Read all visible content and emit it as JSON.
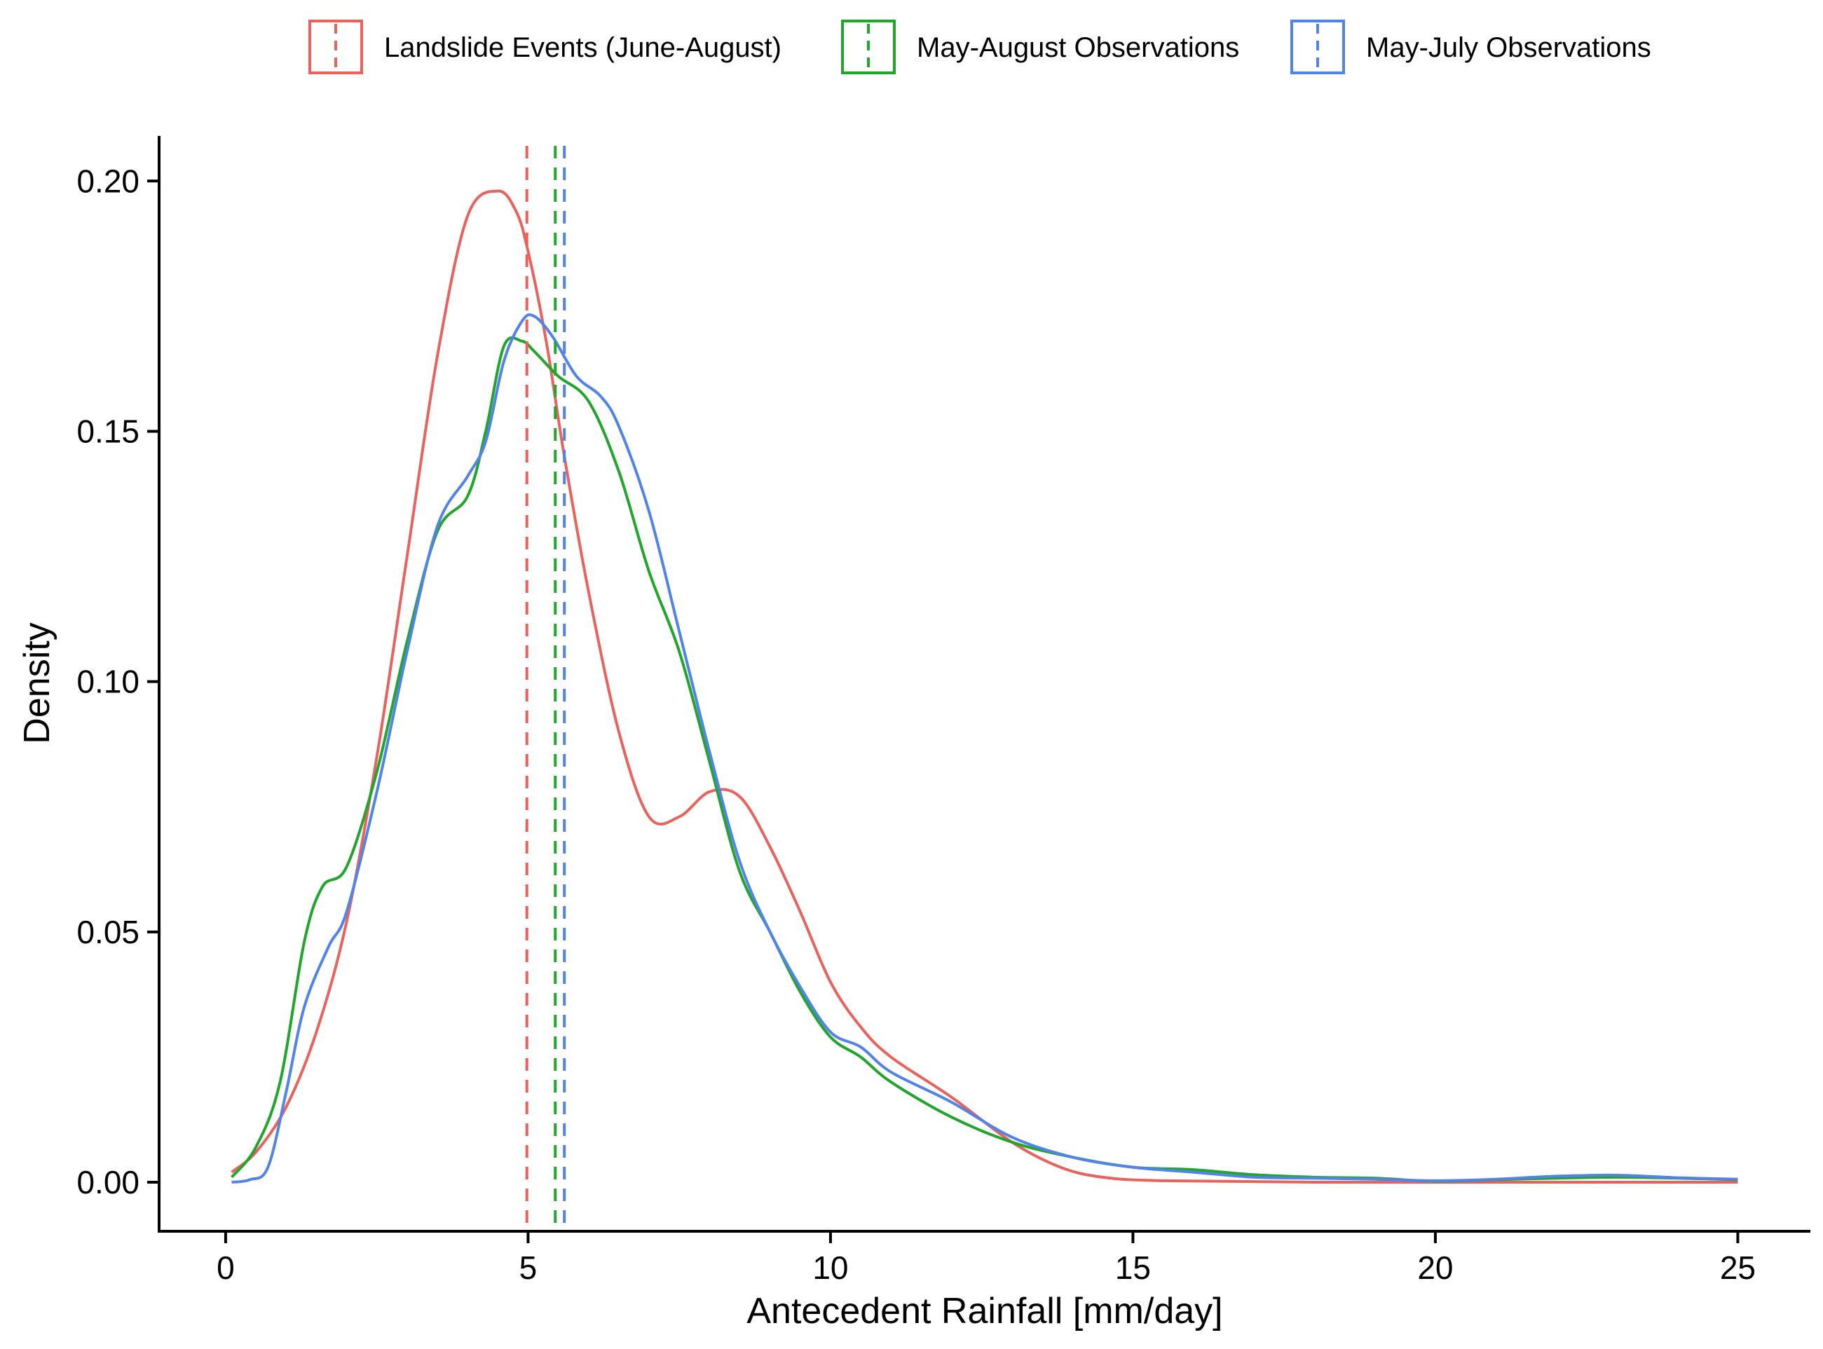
{
  "chart_data": {
    "type": "line",
    "title": "",
    "xlabel": "Antecedent Rainfall [mm/day]",
    "ylabel": "Density",
    "xlim": [
      -1.1,
      26.2
    ],
    "ylim": [
      -0.0098,
      0.209
    ],
    "xticks": [
      0,
      5,
      10,
      15,
      20,
      25
    ],
    "xtick_labels": [
      "0",
      "5",
      "10",
      "15",
      "20",
      "25"
    ],
    "yticks": [
      0.0,
      0.05,
      0.1,
      0.15,
      0.2
    ],
    "ytick_labels": [
      "0.00",
      "0.05",
      "0.10",
      "0.15",
      "0.20"
    ],
    "grid": false,
    "legend_position": "top",
    "series": [
      {
        "name": "Landslide Events (June-August)",
        "color": "#E8635E",
        "mean": 4.98,
        "x": [
          0.1,
          0.5,
          1.0,
          1.5,
          2.0,
          2.5,
          3.0,
          3.5,
          4.0,
          4.5,
          4.8,
          5.0,
          5.3,
          5.6,
          6.0,
          6.5,
          7.0,
          7.5,
          8.0,
          8.5,
          9.0,
          9.5,
          10.0,
          10.5,
          11.0,
          12.0,
          13.0,
          13.8,
          14.5,
          15.5,
          18.0,
          22.0,
          25.0
        ],
        "y": [
          0.002,
          0.006,
          0.015,
          0.03,
          0.052,
          0.085,
          0.125,
          0.165,
          0.193,
          0.198,
          0.194,
          0.186,
          0.168,
          0.145,
          0.118,
          0.09,
          0.073,
          0.073,
          0.078,
          0.077,
          0.067,
          0.054,
          0.04,
          0.031,
          0.025,
          0.017,
          0.008,
          0.003,
          0.001,
          0.0003,
          0.0,
          0.0,
          0.0
        ]
      },
      {
        "name": "May-August Observations",
        "color": "#22A52D",
        "mean": 5.45,
        "x": [
          0.1,
          0.5,
          0.9,
          1.3,
          1.6,
          2.0,
          2.5,
          3.0,
          3.5,
          4.0,
          4.3,
          4.6,
          4.9,
          5.1,
          5.5,
          6.0,
          6.5,
          7.0,
          7.5,
          8.0,
          8.5,
          9.0,
          9.5,
          10.0,
          10.5,
          11.0,
          12.0,
          13.0,
          14.0,
          15.0,
          16.0,
          17.0,
          18.0,
          19.0,
          20.0,
          21.0,
          22.0,
          23.0,
          24.0,
          25.0
        ],
        "y": [
          0.001,
          0.007,
          0.02,
          0.048,
          0.059,
          0.063,
          0.082,
          0.108,
          0.13,
          0.137,
          0.15,
          0.167,
          0.168,
          0.166,
          0.161,
          0.156,
          0.142,
          0.122,
          0.106,
          0.084,
          0.062,
          0.05,
          0.038,
          0.029,
          0.025,
          0.02,
          0.013,
          0.008,
          0.005,
          0.003,
          0.0025,
          0.0015,
          0.001,
          0.0008,
          0.0002,
          0.0005,
          0.0008,
          0.001,
          0.0008,
          0.0005
        ]
      },
      {
        "name": "May-July Observations",
        "color": "#5283E8",
        "mean": 5.6,
        "x": [
          0.1,
          0.4,
          0.7,
          1.0,
          1.3,
          1.7,
          2.0,
          2.5,
          3.0,
          3.5,
          4.0,
          4.3,
          4.6,
          4.9,
          5.1,
          5.4,
          5.8,
          6.2,
          6.5,
          7.0,
          7.5,
          8.0,
          8.5,
          9.0,
          9.5,
          10.0,
          10.5,
          11.0,
          12.0,
          13.0,
          14.0,
          15.0,
          16.0,
          17.0,
          18.0,
          19.0,
          20.0,
          21.0,
          22.0,
          23.0,
          24.0,
          25.0
        ],
        "y": [
          0.0,
          0.0005,
          0.003,
          0.018,
          0.035,
          0.047,
          0.054,
          0.078,
          0.106,
          0.131,
          0.141,
          0.148,
          0.164,
          0.172,
          0.173,
          0.169,
          0.161,
          0.157,
          0.151,
          0.134,
          0.11,
          0.086,
          0.064,
          0.05,
          0.039,
          0.03,
          0.027,
          0.022,
          0.016,
          0.009,
          0.005,
          0.003,
          0.002,
          0.001,
          0.0008,
          0.0006,
          0.0003,
          0.0006,
          0.0012,
          0.0014,
          0.0009,
          0.0006
        ]
      }
    ]
  }
}
